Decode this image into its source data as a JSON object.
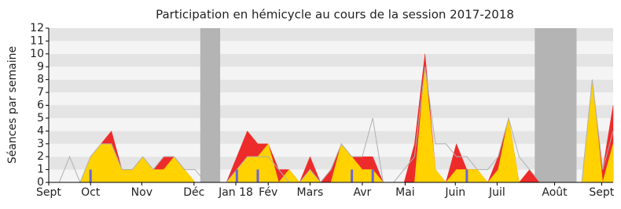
{
  "chart_data": {
    "type": "area",
    "title": "Participation en hémicycle au cours de la session 2017-2018",
    "y_label": "Séances par semaine",
    "xlim": [
      0,
      54
    ],
    "ylim": [
      0,
      12
    ],
    "yticks": [
      0,
      1,
      2,
      3,
      4,
      5,
      6,
      7,
      8,
      9,
      10,
      11,
      12
    ],
    "xticks": [
      {
        "value": 0,
        "label": "Sept"
      },
      {
        "value": 4,
        "label": "Oct"
      },
      {
        "value": 8.9,
        "label": "Nov"
      },
      {
        "value": 13.9,
        "label": "Déc"
      },
      {
        "value": 17.9,
        "label": "Jan 18"
      },
      {
        "value": 21,
        "label": "Fév"
      },
      {
        "value": 25,
        "label": "Mars"
      },
      {
        "value": 30,
        "label": "Avr"
      },
      {
        "value": 34.1,
        "label": "Mai"
      },
      {
        "value": 38.9,
        "label": "Juin"
      },
      {
        "value": 42.9,
        "label": "Juil"
      },
      {
        "value": 48.4,
        "label": "Août"
      },
      {
        "value": 52.9,
        "label": "Sept"
      }
    ],
    "grid": true,
    "shaded_ranges": [
      [
        14.5,
        16.4
      ],
      [
        46.5,
        50.5
      ]
    ],
    "series": [
      {
        "style": "area",
        "color": "#ee2b2b",
        "values": [
          0,
          0,
          0,
          0,
          2,
          3,
          4,
          1,
          1,
          2,
          1,
          2,
          2,
          1,
          0,
          0,
          0,
          0,
          2,
          4,
          3,
          3,
          1,
          1,
          0,
          2,
          0,
          1,
          3,
          2,
          2,
          2,
          0,
          0,
          0,
          3,
          10,
          1,
          0,
          3,
          1,
          1,
          0,
          2,
          5,
          0,
          1,
          0,
          0,
          0,
          0,
          0,
          8,
          1,
          6
        ]
      },
      {
        "style": "area",
        "color": "#ffd200",
        "values": [
          0,
          0,
          0,
          0,
          2,
          3,
          3,
          1,
          1,
          2,
          1,
          1,
          2,
          1,
          0,
          0,
          0,
          0,
          1,
          2,
          2,
          3,
          0,
          1,
          0,
          1,
          0,
          0,
          3,
          2,
          1,
          1,
          0,
          0,
          0,
          0,
          9,
          1,
          0,
          1,
          1,
          1,
          0,
          1,
          5,
          0,
          0,
          0,
          0,
          0,
          0,
          0,
          8,
          0,
          3
        ]
      },
      {
        "style": "line",
        "color": "#b0b0b0",
        "values": [
          0,
          0,
          2,
          0,
          2,
          3,
          3,
          1,
          1,
          2,
          1,
          2,
          2,
          1,
          1,
          0,
          0,
          0,
          1,
          2,
          2,
          2,
          1,
          0,
          0,
          1,
          0,
          1,
          3,
          2,
          2,
          5,
          0,
          0,
          1,
          2,
          9,
          3,
          3,
          2,
          2,
          1,
          1,
          2,
          5,
          2,
          1,
          0,
          0,
          0,
          0,
          0,
          8,
          1,
          4
        ]
      },
      {
        "style": "bars",
        "color": "#6767d8",
        "values": [
          0,
          0,
          0,
          0,
          1,
          0,
          0,
          0,
          0,
          0,
          0,
          0,
          0,
          0,
          0,
          0,
          0,
          0,
          1,
          0,
          1,
          0,
          0,
          0,
          0,
          0,
          0,
          0,
          0,
          1,
          0,
          1,
          0,
          0,
          0,
          0,
          0,
          0,
          0,
          0,
          1,
          0,
          0,
          0,
          0,
          0,
          0,
          0,
          0,
          0,
          0,
          0,
          0,
          0,
          0
        ]
      }
    ]
  }
}
